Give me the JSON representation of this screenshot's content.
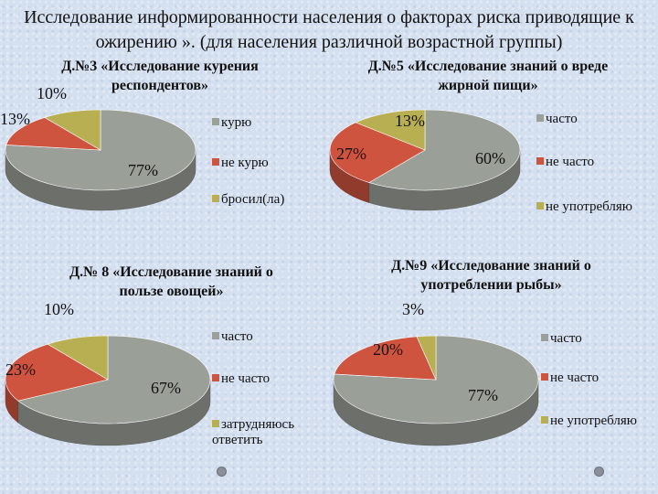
{
  "slide_title": "Исследование информированности населения о факторах риска приводящие к ожирению ». (для населения различной возрастной группы)",
  "colors": {
    "gray": "#9a9f97",
    "red": "#cf5440",
    "olive": "#b8ae52"
  },
  "chart_data": [
    {
      "type": "pie",
      "title": "Д.№3 «Исследование курения респондентов»",
      "labels": [
        "курю",
        "не курю",
        "бросил(ла)"
      ],
      "values": [
        77,
        13,
        10
      ],
      "value_labels": [
        "77%",
        "13%",
        "10%"
      ],
      "colors": [
        "#9a9f97",
        "#cf5440",
        "#b8ae52"
      ],
      "legend": "right"
    },
    {
      "type": "pie",
      "title": "Д.№5 «Исследование знаний о вреде жирной пищи»",
      "labels": [
        "часто",
        "не часто",
        "не употребляю"
      ],
      "values": [
        60,
        27,
        13
      ],
      "value_labels": [
        "60%",
        "27%",
        "13%"
      ],
      "colors": [
        "#9a9f97",
        "#cf5440",
        "#b8ae52"
      ],
      "legend": "right"
    },
    {
      "type": "pie",
      "title": "Д.№ 8 «Исследование знаний о пользе овощей»",
      "labels": [
        "часто",
        "не часто",
        "затрудняюсь ответить"
      ],
      "values": [
        67,
        23,
        10
      ],
      "value_labels": [
        "67%",
        "23%",
        "10%"
      ],
      "colors": [
        "#9a9f97",
        "#cf5440",
        "#b8ae52"
      ],
      "legend": "right"
    },
    {
      "type": "pie",
      "title": "Д.№9 «Исследование знаний о употреблении рыбы»",
      "labels": [
        "часто",
        "не часто",
        "не употребляю"
      ],
      "values": [
        77,
        20,
        3
      ],
      "value_labels": [
        "77%",
        "20%",
        "3%"
      ],
      "colors": [
        "#9a9f97",
        "#cf5440",
        "#b8ae52"
      ],
      "legend": "right"
    }
  ]
}
